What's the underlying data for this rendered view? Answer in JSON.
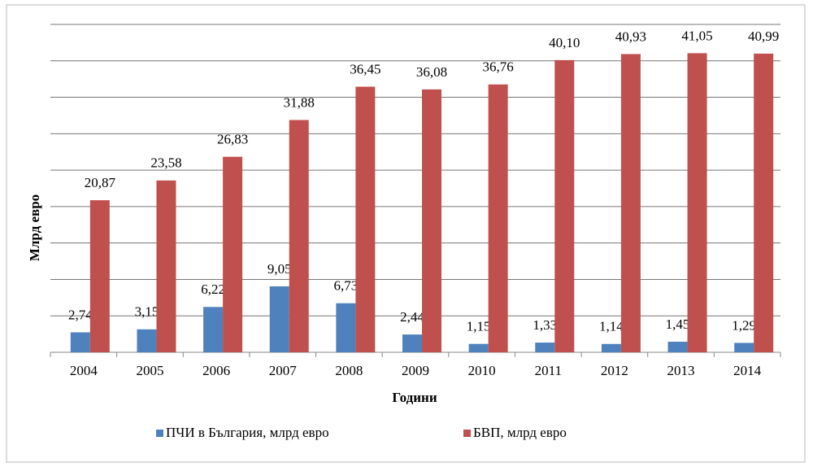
{
  "chart_data": {
    "type": "bar",
    "categories": [
      "2004",
      "2005",
      "2006",
      "2007",
      "2008",
      "2009",
      "2010",
      "2011",
      "2012",
      "2013",
      "2014"
    ],
    "series": [
      {
        "name": "ПЧИ в България, млрд евро",
        "color": "#4f81bd",
        "values": [
          2.74,
          3.15,
          6.22,
          9.05,
          6.73,
          2.44,
          1.15,
          1.33,
          1.14,
          1.45,
          1.29
        ],
        "value_labels": [
          "2,74",
          "3,15",
          "6,22",
          "9,05",
          "6,73",
          "2,44",
          "1,15",
          "1,33",
          "1,14",
          "1,45",
          "1,29"
        ]
      },
      {
        "name": "БВП, млрд евро",
        "color": "#c0504d",
        "values": [
          20.87,
          23.58,
          26.83,
          31.88,
          36.45,
          36.08,
          36.76,
          40.1,
          40.93,
          41.05,
          40.99
        ],
        "value_labels": [
          "20,87",
          "23,58",
          "26,83",
          "31,88",
          "36,45",
          "36,08",
          "36,76",
          "40,10",
          "40,93",
          "41,05",
          "40,99"
        ]
      }
    ],
    "x_label": "Години",
    "y_label": "Млрд  евро",
    "ylim": [
      0,
      45
    ],
    "yticks": [
      0,
      5,
      10,
      15,
      20,
      25,
      30,
      35,
      40,
      45
    ],
    "grid": true
  }
}
